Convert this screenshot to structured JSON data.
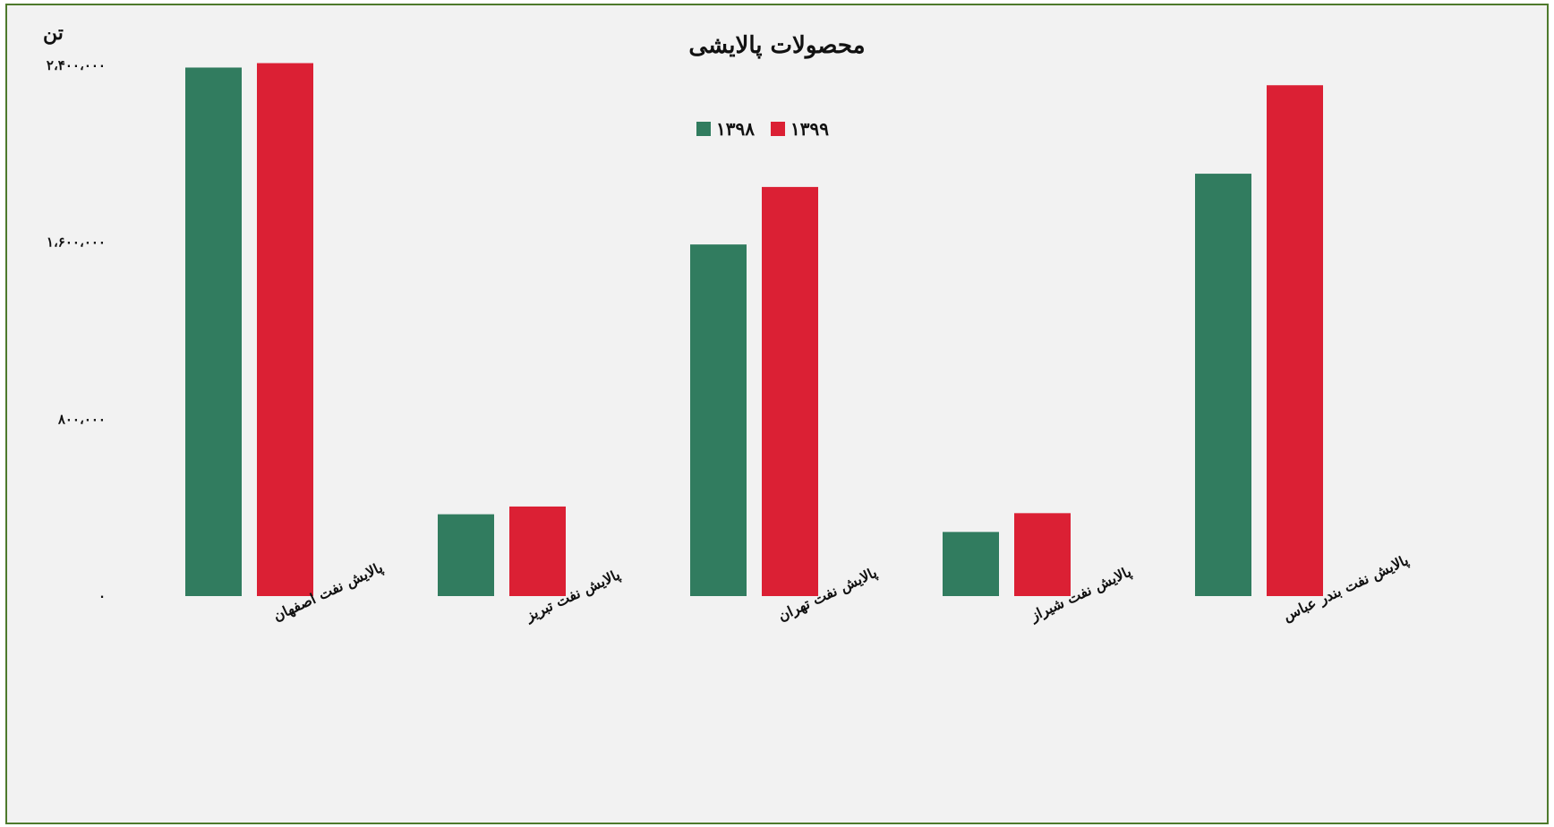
{
  "chart_data": {
    "type": "bar",
    "title": "محصولات پالایشی",
    "ylabel": "تن",
    "ylim": [
      0,
      2400000
    ],
    "yticks": [
      "۰",
      "۸۰۰،۰۰۰",
      "۱،۶۰۰،۰۰۰",
      "۲،۴۰۰،۰۰۰"
    ],
    "ytick_values": [
      0,
      800000,
      1600000,
      2400000
    ],
    "categories": [
      "پالایش نفت اصفهان",
      "پالایش نفت تبریز",
      "پالایش نفت تهران",
      "پالایش نفت شیراز",
      "پالایش نفت بندر عباس"
    ],
    "series": [
      {
        "name": "۱۳۹۸",
        "color": "#317c5f",
        "values": [
          2390000,
          370000,
          1590000,
          290000,
          1910000
        ]
      },
      {
        "name": "۱۳۹۹",
        "color": "#db2034",
        "values": [
          2410000,
          405000,
          1850000,
          375000,
          2310000
        ]
      }
    ],
    "legend_position": "top-center",
    "grid": false
  }
}
